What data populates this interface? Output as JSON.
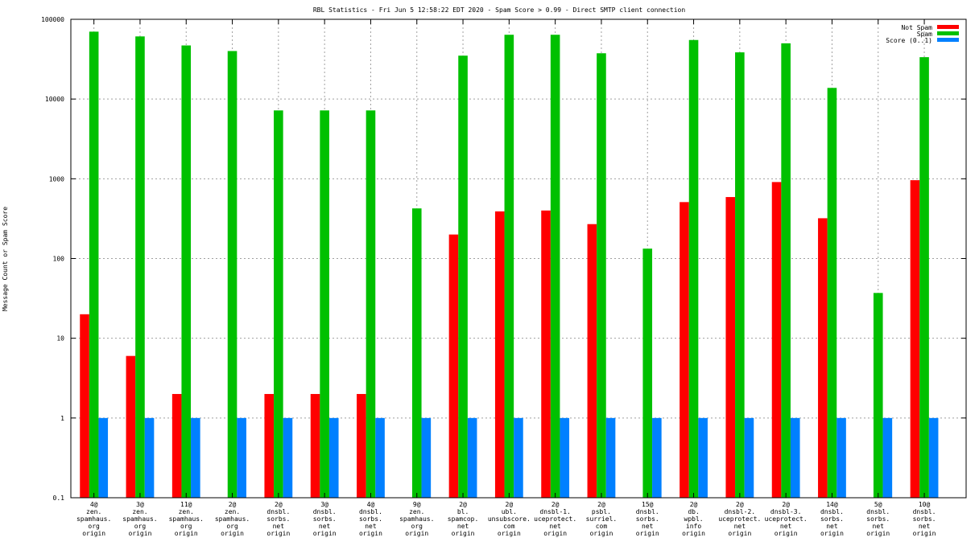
{
  "chart_data": {
    "type": "bar",
    "title": "RBL Statistics - Fri Jun  5 12:58:22 EDT 2020 - Spam Score > 0.99 - Direct SMTP client connection",
    "xlabel": "",
    "ylabel": "Message Count or Spam Score",
    "yscale": "log",
    "ylim": [
      0.1,
      100000
    ],
    "yticks": [
      "0.1",
      "1",
      "10",
      "100",
      "1000",
      "10000",
      "100000"
    ],
    "yticks_values": [
      0.1,
      1,
      10,
      100,
      1000,
      10000,
      100000
    ],
    "grid": true,
    "legend_position": "top-right",
    "categories": [
      [
        "4@",
        "zen.",
        "spamhaus.",
        "org",
        "origin"
      ],
      [
        "3@",
        "zen.",
        "spamhaus.",
        "org",
        "origin"
      ],
      [
        "11@",
        "zen.",
        "spamhaus.",
        "org",
        "origin"
      ],
      [
        "2@",
        "zen.",
        "spamhaus.",
        "org",
        "origin"
      ],
      [
        "2@",
        "dnsbl.",
        "sorbs.",
        "net",
        "origin"
      ],
      [
        "3@",
        "dnsbl.",
        "sorbs.",
        "net",
        "origin"
      ],
      [
        "4@",
        "dnsbl.",
        "sorbs.",
        "net",
        "origin"
      ],
      [
        "9@",
        "zen.",
        "spamhaus.",
        "org",
        "origin"
      ],
      [
        "2@",
        "bl.",
        "spamcop.",
        "net",
        "origin"
      ],
      [
        "2@",
        "ubl.",
        "unsubscore.",
        "com",
        "origin"
      ],
      [
        "2@",
        "dnsbl-1.",
        "uceprotect.",
        "net",
        "origin"
      ],
      [
        "2@",
        "psbl.",
        "surriel.",
        "com",
        "origin"
      ],
      [
        "15@",
        "dnsbl.",
        "sorbs.",
        "net",
        "origin"
      ],
      [
        "2@",
        "db.",
        "wpbl.",
        "info",
        "origin"
      ],
      [
        "2@",
        "dnsbl-2.",
        "uceprotect.",
        "net",
        "origin"
      ],
      [
        "2@",
        "dnsbl-3.",
        "uceprotect.",
        "net",
        "origin"
      ],
      [
        "14@",
        "dnsbl.",
        "sorbs.",
        "net",
        "origin"
      ],
      [
        "5@",
        "dnsbl.",
        "sorbs.",
        "net",
        "origin"
      ],
      [
        "10@",
        "dnsbl.",
        "sorbs.",
        "net",
        "origin"
      ]
    ],
    "series": [
      {
        "name": "Not Spam",
        "color": "#ff0000",
        "values": [
          20,
          6,
          2,
          null,
          2,
          2,
          2,
          null,
          200,
          390,
          400,
          270,
          null,
          510,
          590,
          910,
          320,
          null,
          960
        ]
      },
      {
        "name": "Spam",
        "color": "#00c000",
        "values": [
          70000,
          61000,
          47000,
          40000,
          7200,
          7200,
          7200,
          425,
          35000,
          64000,
          64000,
          37500,
          133,
          55000,
          38500,
          50000,
          13800,
          37,
          33500
        ]
      },
      {
        "name": "Score (0..1)",
        "color": "#0080ff",
        "values": [
          1,
          1,
          1,
          1,
          1,
          1,
          1,
          1,
          1,
          1,
          1,
          1,
          1,
          1,
          1,
          1,
          1,
          1,
          1
        ]
      }
    ]
  }
}
